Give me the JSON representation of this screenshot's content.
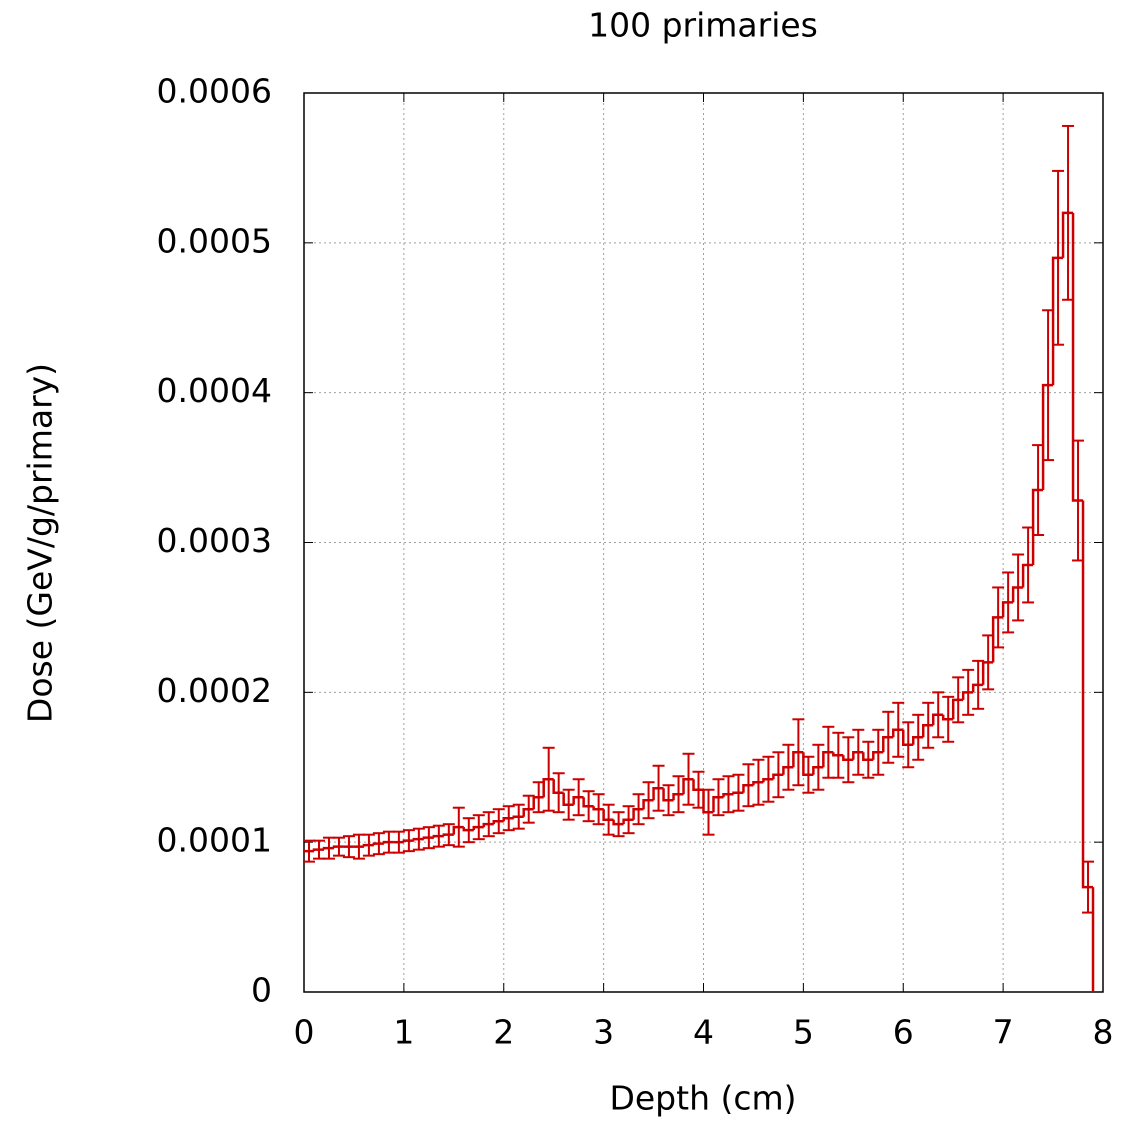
{
  "chart_data": {
    "type": "histogram",
    "title": "100 primaries",
    "x_label": "Depth (cm)",
    "y_label": "Dose (GeV/g/primary)",
    "color": "#cc0000",
    "grid": true,
    "bins": [
      0,
      0.1,
      0.2,
      0.3,
      0.4,
      0.5,
      0.6,
      0.7,
      0.8,
      0.9,
      1,
      1.1,
      1.2,
      1.3,
      1.4,
      1.5,
      1.6,
      1.7,
      1.8,
      1.9,
      2,
      2.1,
      2.2,
      2.3,
      2.4,
      2.5,
      2.6,
      2.7,
      2.8,
      2.9,
      3,
      3.1,
      3.2,
      3.3,
      3.4,
      3.5,
      3.6,
      3.7,
      3.8,
      3.9,
      4,
      4.1,
      4.2,
      4.3,
      4.4,
      4.5,
      4.6,
      4.7,
      4.8,
      4.9,
      5,
      5.1,
      5.2,
      5.3,
      5.4,
      5.5,
      5.6,
      5.7,
      5.8,
      5.9,
      6,
      6.1,
      6.2,
      6.3,
      6.4,
      6.5,
      6.6,
      6.7,
      6.8,
      6.9,
      7,
      7.1,
      7.2,
      7.3,
      7.4,
      7.5,
      7.6,
      7.7,
      7.8,
      7.9
    ],
    "values": [
      9.4e-05,
      9.5e-05,
      9.6e-05,
      9.7e-05,
      9.7e-05,
      9.7e-05,
      9.8e-05,
      9.9e-05,
      0.0001,
      0.0001,
      0.000101,
      0.000102,
      0.000103,
      0.000104,
      0.000105,
      0.00011,
      0.000108,
      0.00011,
      0.000112,
      0.000114,
      0.000116,
      0.000117,
      0.000122,
      0.00013,
      0.000142,
      0.000133,
      0.000125,
      0.00013,
      0.000124,
      0.000122,
      0.000115,
      0.000112,
      0.000115,
      0.000122,
      0.000128,
      0.000136,
      0.000128,
      0.000132,
      0.000142,
      0.000135,
      0.00012,
      0.00013,
      0.000132,
      0.000133,
      0.000138,
      0.00014,
      0.000142,
      0.000145,
      0.00015,
      0.00016,
      0.000145,
      0.00015,
      0.00016,
      0.000158,
      0.000155,
      0.00016,
      0.000155,
      0.00016,
      0.00017,
      0.000175,
      0.000165,
      0.00017,
      0.000178,
      0.000185,
      0.000182,
      0.000195,
      0.0002,
      0.000205,
      0.00022,
      0.00025,
      0.00026,
      0.00027,
      0.000285,
      0.000335,
      0.000405,
      0.00049,
      0.00052,
      0.000328,
      7e-05
    ],
    "errors": [
      7e-06,
      6e-06,
      7e-06,
      6e-06,
      7e-06,
      8e-06,
      7e-06,
      7e-06,
      7e-06,
      7e-06,
      7e-06,
      7e-06,
      7e-06,
      7e-06,
      7e-06,
      1.3e-05,
      8e-06,
      8e-06,
      8e-06,
      8e-06,
      8e-06,
      8e-06,
      9e-06,
      1e-05,
      2.1e-05,
      1.3e-05,
      1e-05,
      1.2e-05,
      1e-05,
      1e-05,
      1e-05,
      8e-06,
      9e-06,
      1e-05,
      1.2e-05,
      1.5e-05,
      1e-05,
      1.2e-05,
      1.7e-05,
      1.2e-05,
      1.5e-05,
      1.2e-05,
      1.2e-05,
      1.2e-05,
      1.4e-05,
      1.5e-05,
      1.5e-05,
      1.5e-05,
      1.5e-05,
      2.2e-05,
      1.2e-05,
      1.5e-05,
      1.7e-05,
      1.5e-05,
      1.5e-05,
      1.5e-05,
      1.2e-05,
      1.5e-05,
      1.7e-05,
      1.8e-05,
      1.5e-05,
      1.5e-05,
      1.5e-05,
      1.5e-05,
      1.5e-05,
      1.5e-05,
      1.5e-05,
      1.6e-05,
      1.8e-05,
      2e-05,
      2e-05,
      2.2e-05,
      2.5e-05,
      3e-05,
      5e-05,
      5.8e-05,
      5.8e-05,
      4e-05,
      1.7e-05
    ],
    "xlim": [
      0,
      8
    ],
    "xticks": [
      0,
      1,
      2,
      3,
      4,
      5,
      6,
      7,
      8
    ],
    "ylim": [
      0,
      0.0006
    ],
    "yticks": [
      0,
      0.0001,
      0.0002,
      0.0003,
      0.0004,
      0.0005,
      0.0006
    ]
  }
}
